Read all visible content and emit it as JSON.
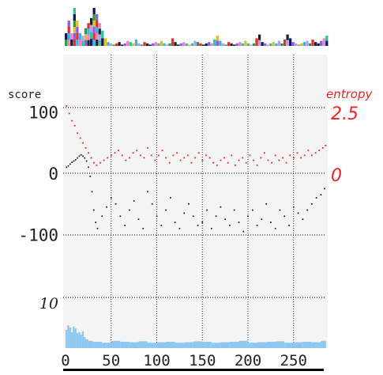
{
  "chart_data": {
    "type": "scatter",
    "title": "",
    "left_axis_label": "score",
    "right_axis_label": "entropy",
    "score_ticks": [
      {
        "value": 100,
        "label": "100"
      },
      {
        "value": 0,
        "label": "0"
      },
      {
        "value": -100,
        "label": "-100"
      }
    ],
    "entropy_ticks": [
      {
        "value": 2.5,
        "label": "2.5"
      },
      {
        "value": 0,
        "label": "0"
      }
    ],
    "coverage_tick": {
      "value": 10,
      "label": "10"
    },
    "x_ticks": [
      0,
      50,
      100,
      150,
      200,
      250
    ],
    "xlim": [
      0,
      285
    ],
    "score_ylim": [
      -100,
      100
    ],
    "entropy_ylim": [
      0,
      2.5
    ],
    "grid": true,
    "colors": {
      "score": "#111111",
      "entropy": "#ee2222",
      "coverage": "#8ec8f0",
      "grid": "#222222",
      "logo_dark": "#0b1a5c"
    },
    "series": [
      {
        "role": "score",
        "x": [
          1,
          3,
          5,
          7,
          9,
          11,
          13,
          15,
          17,
          19,
          21,
          23,
          25,
          27,
          29,
          31,
          33,
          35,
          40,
          45,
          50,
          55,
          60,
          65,
          70,
          75,
          80,
          85,
          90,
          95,
          100,
          105,
          110,
          115,
          120,
          125,
          130,
          135,
          140,
          145,
          150,
          155,
          160,
          165,
          170,
          175,
          180,
          185,
          190,
          195,
          200,
          205,
          210,
          215,
          220,
          225,
          230,
          235,
          240,
          245,
          250,
          255,
          260,
          265,
          270,
          275,
          280,
          284
        ],
        "y": [
          10,
          12,
          15,
          18,
          20,
          22,
          25,
          28,
          30,
          28,
          25,
          20,
          10,
          -5,
          -30,
          -60,
          -80,
          -90,
          -70,
          -55,
          -40,
          -50,
          -70,
          -85,
          -60,
          -45,
          -75,
          -90,
          -30,
          -50,
          -70,
          -85,
          -60,
          -40,
          -80,
          -90,
          -65,
          -50,
          -70,
          -85,
          -80,
          -60,
          -90,
          -70,
          -55,
          -75,
          -85,
          -60,
          -80,
          -95,
          -70,
          -60,
          -85,
          -75,
          -50,
          -80,
          -90,
          -60,
          -70,
          -85,
          -55,
          -65,
          -75,
          -60,
          -50,
          -40,
          -35,
          -25
        ]
      },
      {
        "role": "entropy",
        "x": [
          1,
          4,
          7,
          10,
          13,
          16,
          19,
          22,
          25,
          28,
          31,
          34,
          38,
          42,
          46,
          50,
          54,
          58,
          62,
          66,
          70,
          74,
          78,
          82,
          86,
          90,
          94,
          98,
          102,
          106,
          110,
          114,
          118,
          122,
          126,
          130,
          134,
          138,
          142,
          146,
          150,
          154,
          158,
          162,
          166,
          170,
          174,
          178,
          182,
          186,
          190,
          194,
          198,
          202,
          206,
          210,
          214,
          218,
          222,
          226,
          230,
          234,
          238,
          242,
          246,
          250,
          254,
          258,
          262,
          266,
          270,
          274,
          278,
          282,
          285
        ],
        "y": [
          2.6,
          2.3,
          2.0,
          1.8,
          1.5,
          1.3,
          1.1,
          0.9,
          0.7,
          0.5,
          0.3,
          0.2,
          0.3,
          0.4,
          0.5,
          0.6,
          0.7,
          0.8,
          0.6,
          0.4,
          0.5,
          0.7,
          0.8,
          0.6,
          0.5,
          0.9,
          0.6,
          0.4,
          0.6,
          0.8,
          0.5,
          0.3,
          0.6,
          0.7,
          0.4,
          0.5,
          0.6,
          0.3,
          0.5,
          0.7,
          0.4,
          0.6,
          0.5,
          0.3,
          0.2,
          0.4,
          0.5,
          0.3,
          0.6,
          0.2,
          0.4,
          0.5,
          0.3,
          0.6,
          0.4,
          0.2,
          0.5,
          0.7,
          0.4,
          0.3,
          0.6,
          0.4,
          0.5,
          0.3,
          0.6,
          0.5,
          0.7,
          0.5,
          0.6,
          0.8,
          0.6,
          0.7,
          0.8,
          0.9,
          1.0
        ]
      },
      {
        "role": "coverage",
        "x": [
          0,
          2,
          4,
          6,
          8,
          10,
          12,
          14,
          16,
          18,
          20,
          22,
          25,
          30,
          40,
          50,
          60,
          70,
          80,
          90,
          100,
          110,
          120,
          130,
          140,
          150,
          160,
          170,
          180,
          190,
          200,
          210,
          220,
          230,
          240,
          250,
          260,
          270,
          280,
          285
        ],
        "y": [
          3.5,
          4.5,
          4.0,
          3.0,
          4.2,
          3.8,
          2.8,
          3.0,
          2.5,
          3.2,
          2.0,
          1.5,
          1.2,
          1.0,
          0.8,
          1.2,
          1.0,
          0.9,
          1.1,
          0.8,
          0.9,
          1.0,
          0.8,
          0.9,
          1.1,
          1.0,
          0.8,
          0.9,
          1.0,
          1.2,
          0.8,
          0.9,
          1.0,
          1.1,
          0.8,
          0.9,
          1.0,
          0.9,
          1.2,
          1.1
        ]
      }
    ],
    "logo_heights": [
      1,
      2,
      1,
      3,
      2,
      1,
      0.8,
      1.4,
      1.8,
      2.2,
      3.0,
      2.5,
      1.8,
      1.2,
      0.6,
      0.3,
      0.2,
      0.1,
      0.2,
      0.3,
      0.1,
      0.2,
      0.4,
      0.3,
      0.2,
      0.5,
      0.2,
      0.1,
      0.3,
      0.2,
      0.1,
      0.2,
      0.3,
      0.2,
      0.4,
      0.2,
      0.1,
      0.2,
      0.6,
      0.3,
      0.1,
      0.2,
      0.3,
      0.2,
      0.1,
      0.2,
      0.4,
      0.3,
      0.2,
      0.1,
      0.2,
      0.3,
      0.2,
      0.5,
      0.8,
      0.4,
      0.2,
      0.1,
      0.3,
      0.2,
      0.1,
      0.2,
      0.3,
      0.2,
      0.4,
      0.2,
      0.1,
      0.2,
      0.6,
      0.9,
      0.3,
      0.2,
      0.1,
      0.2,
      0.3,
      0.2,
      0.4,
      0.2,
      0.5,
      0.9,
      0.6,
      0.3,
      0.2,
      0.1,
      0.2,
      0.3,
      0.4,
      0.2,
      0.5,
      0.3,
      0.2,
      0.4,
      0.6,
      0.8
    ]
  }
}
